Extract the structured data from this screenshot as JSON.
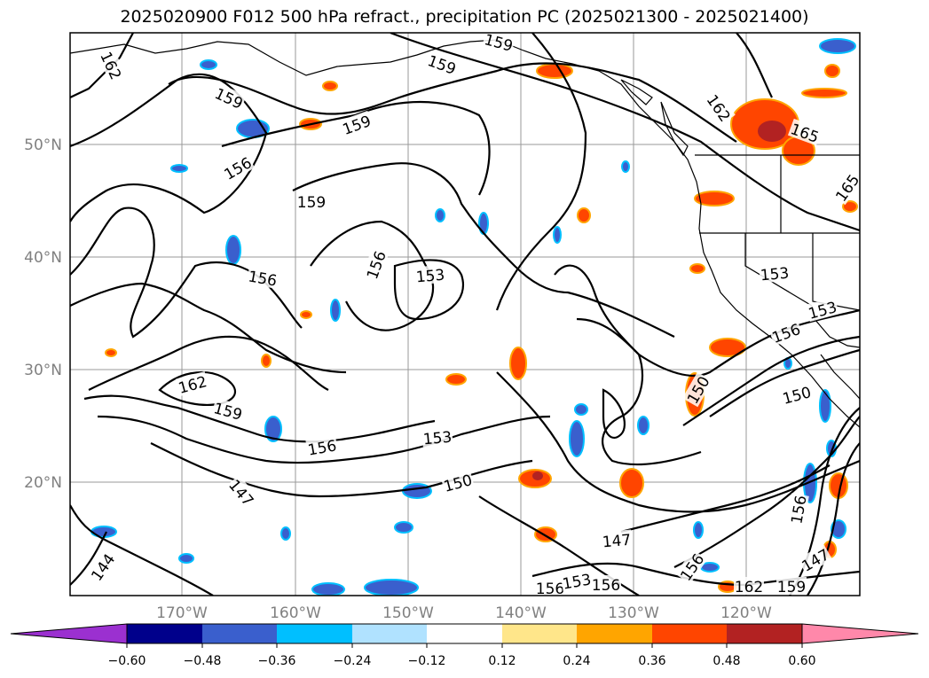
{
  "title": "2025020900 F012 500 hPa refract., precipitation PC (2025021300 - 2025021400)",
  "map": {
    "lat_ticks": [
      "50°N",
      "40°N",
      "30°N",
      "20°N"
    ],
    "lon_ticks": [
      "170°W",
      "160°W",
      "150°W",
      "140°W",
      "130°W",
      "120°W"
    ],
    "contour_labels": [
      "162",
      "159",
      "159",
      "159",
      "159",
      "162",
      "165",
      "165",
      "156",
      "159",
      "156",
      "153",
      "156",
      "153",
      "153",
      "156",
      "162",
      "159",
      "156",
      "153",
      "150",
      "150",
      "150",
      "147",
      "144",
      "147",
      "156",
      "153",
      "156",
      "156",
      "162",
      "159",
      "147",
      "156"
    ]
  },
  "colorbar": {
    "ticks": [
      "−0.60",
      "−0.48",
      "−0.36",
      "−0.24",
      "−0.12",
      "0.12",
      "0.24",
      "0.36",
      "0.48",
      "0.60"
    ],
    "colors": [
      "#9b30d0",
      "#00008b",
      "#3a5fcd",
      "#00bfff",
      "#b0e2ff",
      "#ffffff",
      "#ffe68a",
      "#ffa500",
      "#ff4500",
      "#b22222",
      "#ff88aa"
    ]
  }
}
